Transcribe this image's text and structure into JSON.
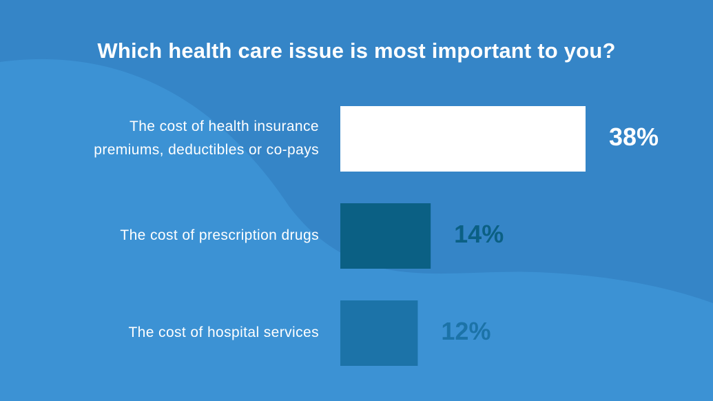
{
  "chart_data": {
    "type": "bar",
    "orientation": "horizontal",
    "title": "Which health care issue is most important to you?",
    "categories": [
      [
        "The cost of health insurance",
        "premiums, deductibles or co-pays"
      ],
      [
        "The cost of prescription drugs"
      ],
      [
        "The cost of hospital services"
      ]
    ],
    "values": [
      38,
      14,
      12
    ],
    "value_labels": [
      "38%",
      "14%",
      "12%"
    ],
    "unit": "%",
    "xlim": [
      0,
      38
    ],
    "grid": false,
    "legend": "none",
    "colors": {
      "background": "#3585c7",
      "background_wave": "#3c92d4",
      "bars": [
        "#ffffff",
        "#0b6084",
        "#1c73a8"
      ],
      "value_labels": [
        "#ffffff",
        "#0b6084",
        "#1c73a8"
      ]
    }
  }
}
